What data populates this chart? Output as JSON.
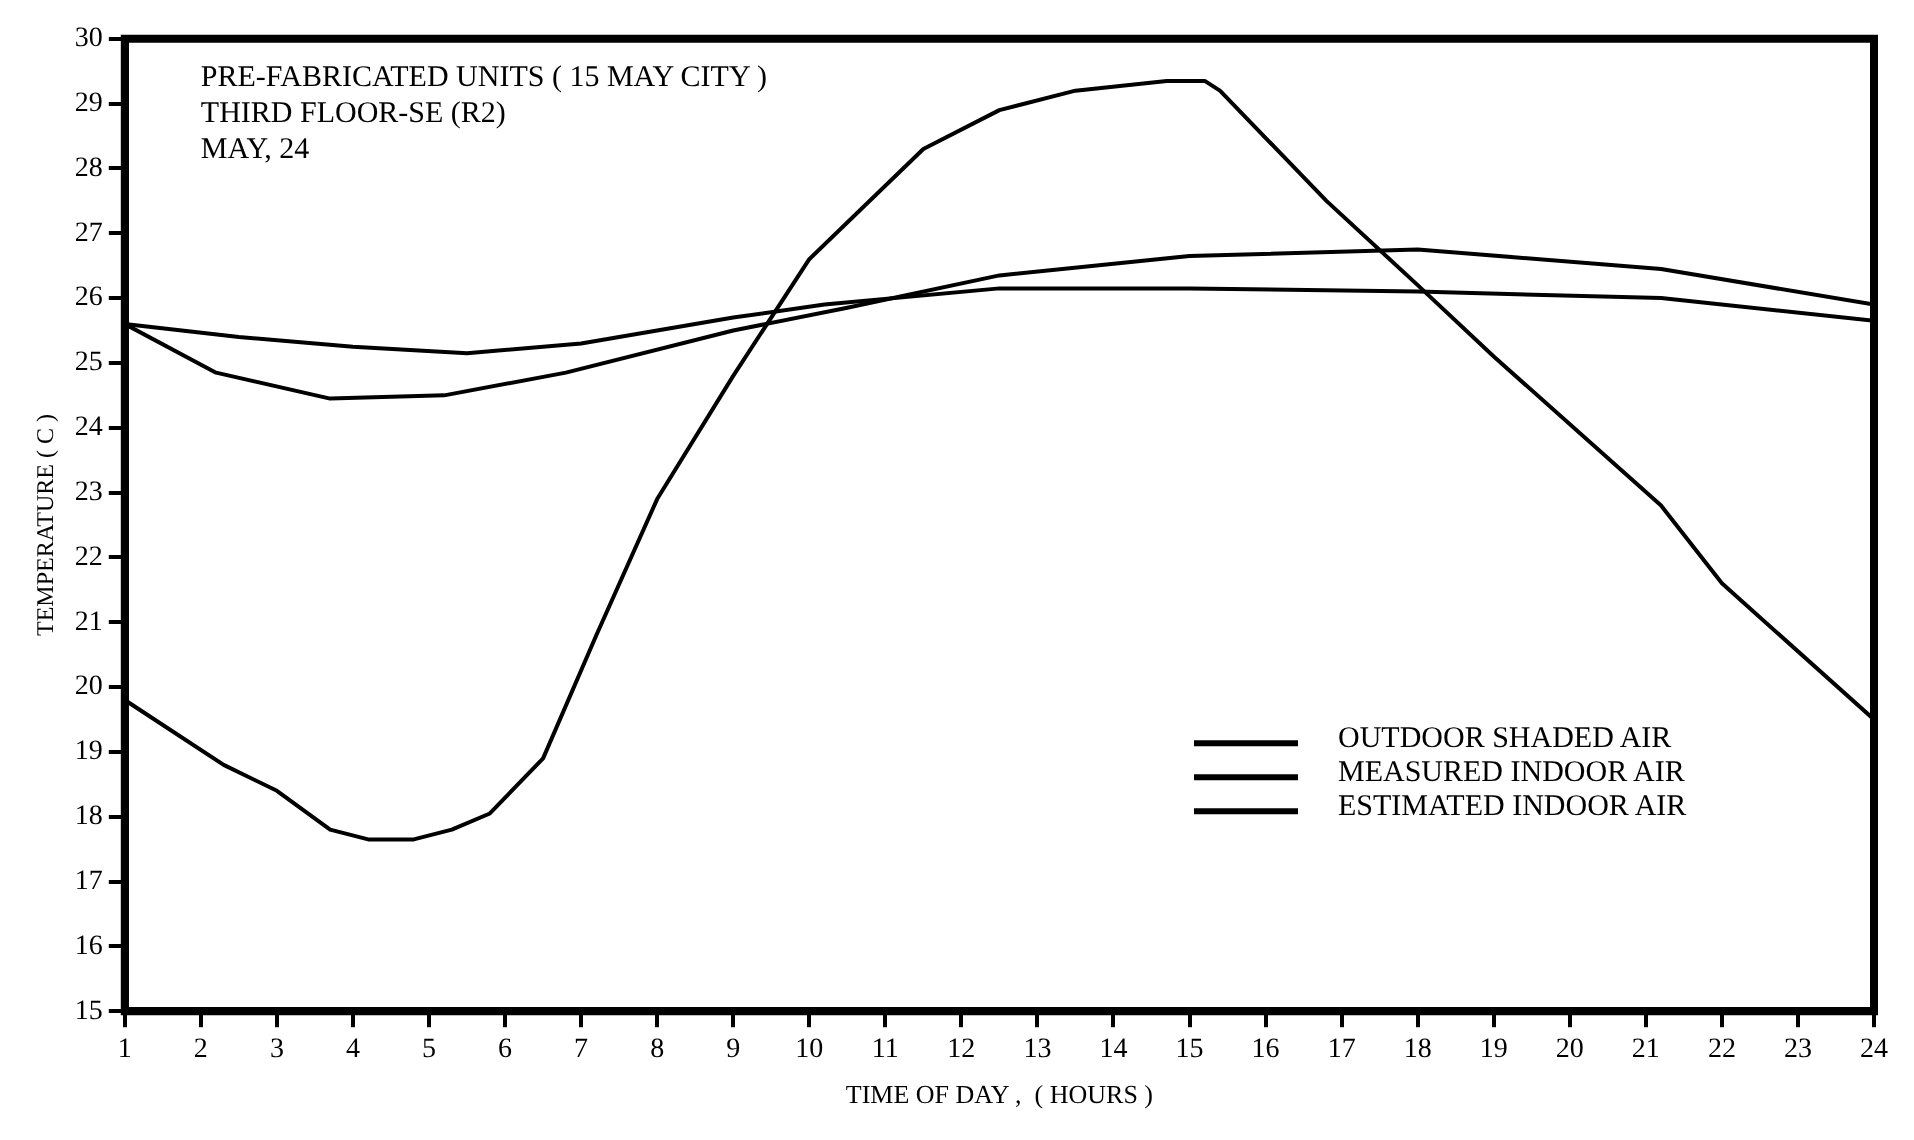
{
  "chart_data": {
    "type": "line",
    "xlabel": "TIME OF DAY ,  ( HOURS )",
    "ylabel": "TEMPERATURE ( C )",
    "annotations": [
      "PRE-FABRICATED UNITS ( 15 MAY CITY )",
      "THIRD FLOOR-SE (R2)",
      "MAY, 24"
    ],
    "xlim": [
      1,
      24
    ],
    "xticks": [
      1,
      2,
      3,
      4,
      5,
      6,
      7,
      8,
      9,
      10,
      11,
      12,
      13,
      14,
      15,
      16,
      17,
      18,
      19,
      20,
      21,
      22,
      23,
      24
    ],
    "ylim": [
      15,
      30
    ],
    "yticks": [
      15,
      16,
      17,
      18,
      19,
      20,
      21,
      22,
      23,
      24,
      25,
      26,
      27,
      28,
      29,
      30
    ],
    "grid": false,
    "legend": "bottom right",
    "marker": "none",
    "line_style": "solid",
    "series": [
      {
        "name": "OUTDOOR SHADED AIR",
        "color": "#000000",
        "x": [
          1,
          2.3,
          3,
          3.7,
          4.2,
          4.8,
          5.3,
          5.8,
          6.5,
          7.2,
          8,
          9,
          10,
          11.5,
          12.5,
          13.5,
          14.7,
          15.2,
          15.4,
          16.8,
          18,
          19,
          21.2,
          22,
          24
        ],
        "values": [
          19.8,
          18.8,
          18.4,
          17.8,
          17.65,
          17.65,
          17.8,
          18.05,
          18.9,
          20.8,
          22.9,
          24.8,
          26.6,
          28.3,
          28.9,
          29.2,
          29.35,
          29.35,
          29.2,
          27.5,
          26.2,
          25.1,
          22.8,
          21.6,
          19.5
        ]
      },
      {
        "name": "MEASURED INDOOR AIR",
        "color": "#000000",
        "x": [
          1,
          2.5,
          4,
          5.5,
          7,
          9,
          10.2,
          12.5,
          15,
          18,
          21.2,
          24
        ],
        "values": [
          25.6,
          25.4,
          25.25,
          25.15,
          25.3,
          25.7,
          25.9,
          26.15,
          26.15,
          26.1,
          26.0,
          25.65
        ]
      },
      {
        "name": "ESTIMATED INDOOR AIR",
        "color": "#000000",
        "x": [
          1,
          2.2,
          3.7,
          5.2,
          6.8,
          9,
          10.5,
          12.5,
          15,
          18,
          21.2,
          24
        ],
        "values": [
          25.6,
          24.85,
          24.45,
          24.5,
          24.85,
          25.5,
          25.85,
          26.35,
          26.65,
          26.75,
          26.45,
          25.9
        ]
      }
    ]
  }
}
